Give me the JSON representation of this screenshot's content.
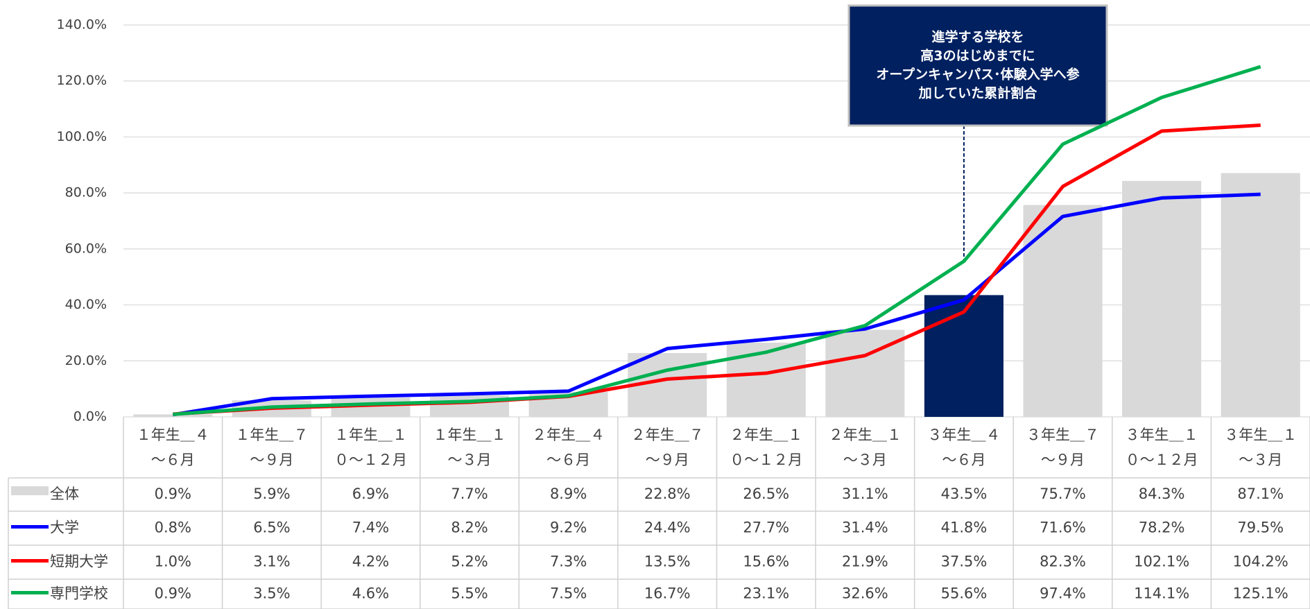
{
  "chart_data": {
    "type": "bar_line_table",
    "categories": [
      "１年生＿４～６月",
      "１年生＿７～９月",
      "１年生＿１０～１２月",
      "１年生＿１～３月",
      "２年生＿４～６月",
      "２年生＿７～９月",
      "２年生＿１０～１２月",
      "２年生＿１～３月",
      "３年生＿４～６月",
      "３年生＿７～９月",
      "３年生＿１０～１２月",
      "３年生＿１～３月"
    ],
    "series": [
      {
        "name": "全体",
        "type": "bar",
        "color": "#d9d9d9",
        "highlight_index": 8,
        "highlight_color": "#002060",
        "values": [
          0.9,
          5.9,
          6.9,
          7.7,
          8.9,
          22.8,
          26.5,
          31.1,
          43.5,
          75.7,
          84.3,
          87.1
        ],
        "value_labels": [
          "0.9%",
          "5.9%",
          "6.9%",
          "7.7%",
          "8.9%",
          "22.8%",
          "26.5%",
          "31.1%",
          "43.5%",
          "75.7%",
          "84.3%",
          "87.1%"
        ]
      },
      {
        "name": "大学",
        "type": "line",
        "color": "#0000ff",
        "values": [
          0.8,
          6.5,
          7.4,
          8.2,
          9.2,
          24.4,
          27.7,
          31.4,
          41.8,
          71.6,
          78.2,
          79.5
        ],
        "value_labels": [
          "0.8%",
          "6.5%",
          "7.4%",
          "8.2%",
          "9.2%",
          "24.4%",
          "27.7%",
          "31.4%",
          "41.8%",
          "71.6%",
          "78.2%",
          "79.5%"
        ]
      },
      {
        "name": "短期大学",
        "type": "line",
        "color": "#ff0000",
        "values": [
          1.0,
          3.1,
          4.2,
          5.2,
          7.3,
          13.5,
          15.6,
          21.9,
          37.5,
          82.3,
          102.1,
          104.2
        ],
        "value_labels": [
          "1.0%",
          "3.1%",
          "4.2%",
          "5.2%",
          "7.3%",
          "13.5%",
          "15.6%",
          "21.9%",
          "37.5%",
          "82.3%",
          "102.1%",
          "104.2%"
        ]
      },
      {
        "name": "専門学校",
        "type": "line",
        "color": "#00b050",
        "values": [
          0.9,
          3.5,
          4.6,
          5.5,
          7.5,
          16.7,
          23.1,
          32.6,
          55.6,
          97.4,
          114.1,
          125.1
        ],
        "value_labels": [
          "0.9%",
          "3.5%",
          "4.6%",
          "5.5%",
          "7.5%",
          "16.7%",
          "23.1%",
          "32.6%",
          "55.6%",
          "97.4%",
          "114.1%",
          "125.1%"
        ]
      }
    ],
    "ylim": [
      0,
      140
    ],
    "yticks": [
      {
        "value": 0,
        "label": "0.0%"
      },
      {
        "value": 20,
        "label": "20.0%"
      },
      {
        "value": 40,
        "label": "40.0%"
      },
      {
        "value": 60,
        "label": "60.0%"
      },
      {
        "value": 80,
        "label": "80.0%"
      },
      {
        "value": 100,
        "label": "100.0%"
      },
      {
        "value": 120,
        "label": "120.0%"
      },
      {
        "value": 140,
        "label": "140.0%"
      }
    ],
    "grid": true,
    "annotation": {
      "lines": [
        "進学する学校を",
        "高3のはじめまでに",
        "オープンキャンパス･体験入学へ参",
        "加していた累計割合"
      ],
      "index": 8,
      "color": "#002060"
    }
  }
}
